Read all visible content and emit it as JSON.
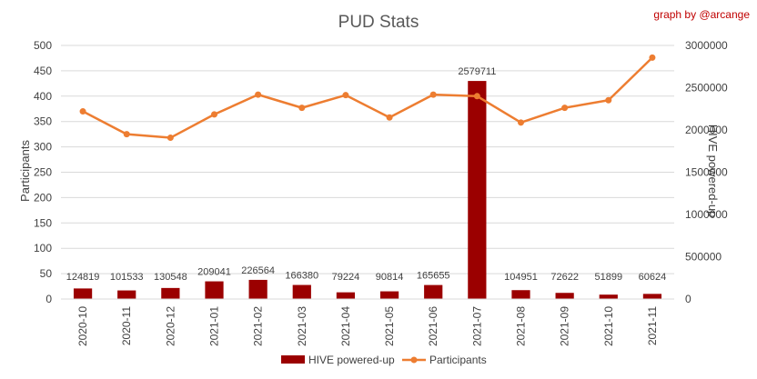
{
  "colors": {
    "bar": "#9b0000",
    "line": "#ed7d31",
    "attribution": "#c00000",
    "grid": "#d9d9d9",
    "text": "#404040",
    "title": "#595959"
  },
  "chart_data": {
    "type": "bar",
    "title": "PUD Stats",
    "attribution": "graph by @arcange",
    "categories": [
      "2020-10",
      "2020-11",
      "2020-12",
      "2021-01",
      "2021-02",
      "2021-03",
      "2021-04",
      "2021-05",
      "2021-06",
      "2021-07",
      "2021-08",
      "2021-09",
      "2021-10",
      "2021-11"
    ],
    "ylabel_left": "Participants",
    "ylabel_right": "HIVE powered-up",
    "ylim_left": [
      0,
      500
    ],
    "ylim_right": [
      0,
      3000000
    ],
    "yticks_left": [
      "0",
      "50",
      "100",
      "150",
      "200",
      "250",
      "300",
      "350",
      "400",
      "450",
      "500"
    ],
    "yticks_right": [
      "0",
      "500000",
      "1000000",
      "1500000",
      "2000000",
      "2500000",
      "3000000"
    ],
    "grid": true,
    "legend": "bottom",
    "series": [
      {
        "name": "HIVE powered-up",
        "type": "bar",
        "axis": "right",
        "values": [
          124819,
          101533,
          130548,
          209041,
          226564,
          166380,
          79224,
          90814,
          165655,
          2579711,
          104951,
          72622,
          51899,
          60624
        ],
        "labels": [
          "124819",
          "101533",
          "130548",
          "209041",
          "226564",
          "166380",
          "79224",
          "90814",
          "165655",
          "2579711",
          "104951",
          "72622",
          "51899",
          "60624"
        ]
      },
      {
        "name": "Participants",
        "type": "line",
        "axis": "left",
        "values": [
          370,
          325,
          318,
          364,
          403,
          377,
          402,
          358,
          403,
          400,
          348,
          377,
          392,
          476
        ]
      }
    ]
  }
}
